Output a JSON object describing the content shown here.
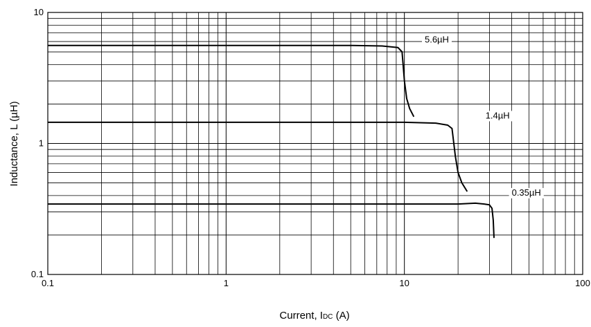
{
  "chart_data": {
    "type": "line",
    "title": "",
    "xlabel": "Current, IDC (A)",
    "xlabel_parts": {
      "prefix": "Current, I",
      "sub": "DC",
      "suffix": " (A)"
    },
    "ylabel": "Inductance, L (µH)",
    "x_scale": "log",
    "y_scale": "log",
    "xlim": [
      0.1,
      100
    ],
    "ylim": [
      0.1,
      10
    ],
    "grid": true,
    "legend": "none",
    "xticks": [
      {
        "value": 0.1,
        "label": "0.1"
      },
      {
        "value": 1,
        "label": "1"
      },
      {
        "value": 10,
        "label": "10"
      },
      {
        "value": 100,
        "label": "100"
      }
    ],
    "yticks": [
      {
        "value": 0.1,
        "label": "0.1"
      },
      {
        "value": 1,
        "label": "1"
      },
      {
        "value": 10,
        "label": "10"
      }
    ],
    "series": [
      {
        "name": "5.6µH",
        "color": "#000000",
        "label_at": [
          13.0,
          5.9
        ],
        "x": [
          0.1,
          1,
          5,
          7.5,
          9.2,
          9.7,
          10.0,
          10.3,
          10.7,
          11.3
        ],
        "y": [
          5.6,
          5.6,
          5.6,
          5.55,
          5.4,
          5.0,
          3.0,
          2.2,
          1.85,
          1.6
        ]
      },
      {
        "name": "1.4µH",
        "color": "#000000",
        "label_at": [
          28.5,
          1.55
        ],
        "x": [
          0.1,
          1,
          10,
          15,
          17.5,
          18.5,
          19.3,
          20.0,
          21.0,
          22.5
        ],
        "y": [
          1.45,
          1.45,
          1.45,
          1.43,
          1.38,
          1.3,
          0.8,
          0.6,
          0.5,
          0.43
        ]
      },
      {
        "name": "0.35µH",
        "color": "#000000",
        "label_at": [
          40.0,
          0.4
        ],
        "x": [
          0.1,
          1,
          10,
          20,
          25,
          28,
          30,
          31,
          31.5,
          31.8
        ],
        "y": [
          0.345,
          0.345,
          0.345,
          0.345,
          0.35,
          0.345,
          0.34,
          0.32,
          0.26,
          0.19
        ]
      }
    ]
  }
}
